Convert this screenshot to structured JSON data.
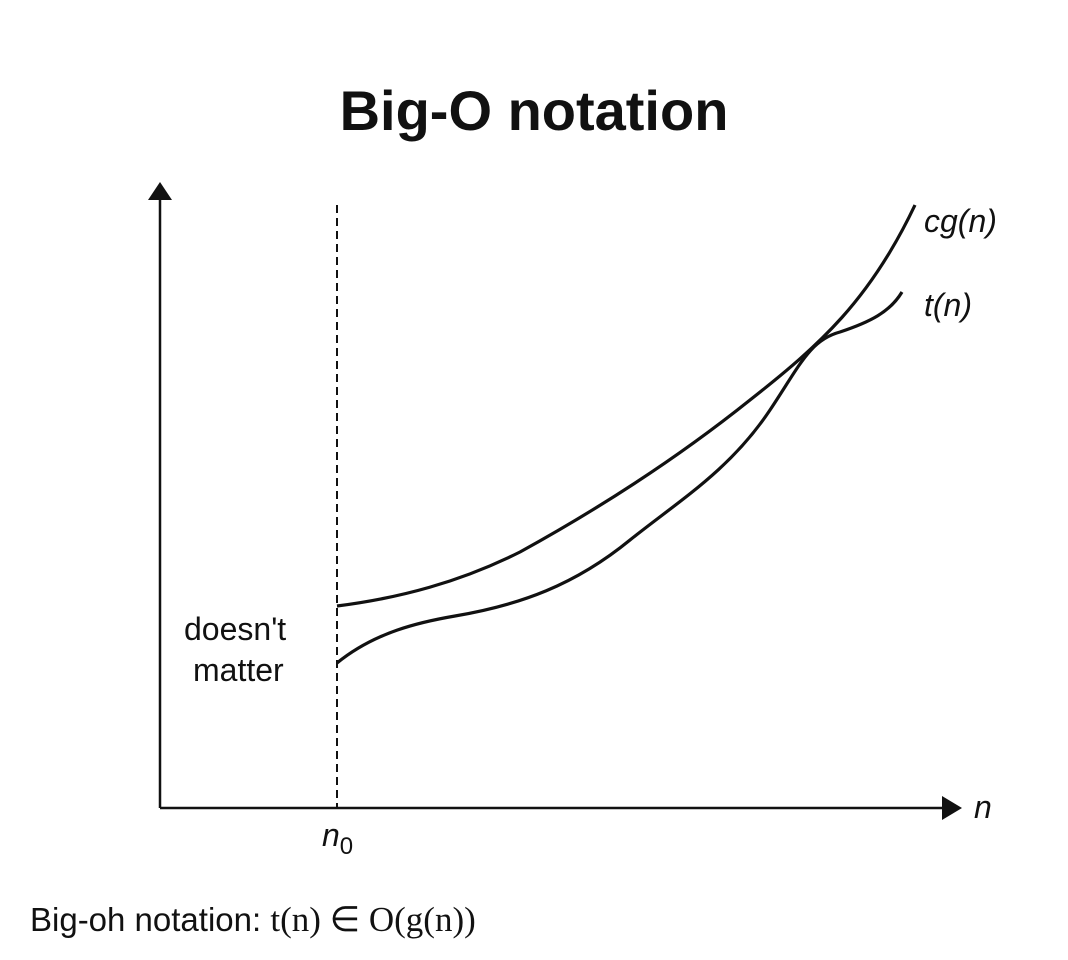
{
  "title": "Big-O notation",
  "labels": {
    "upper_curve": "cg(n)",
    "lower_curve": "t(n)",
    "x_axis": "n",
    "threshold": "n0",
    "region_note_line1": "doesn't",
    "region_note_line2": "matter"
  },
  "caption": {
    "text": "Big-oh notation: ",
    "formula": "t(n) ∈ O(g(n))"
  },
  "colors": {
    "ink": "#111111",
    "background": "#ffffff"
  }
}
